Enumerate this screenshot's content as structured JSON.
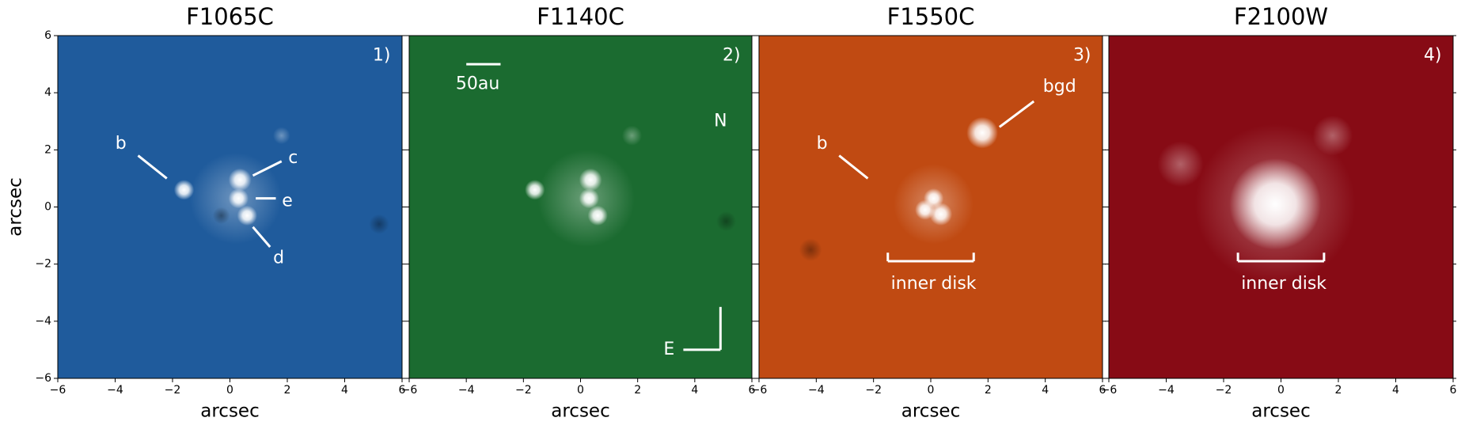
{
  "chart_data": [
    {
      "type": "image",
      "title": "F1065C",
      "panel_label": "1)",
      "xlabel": "arcsec",
      "ylabel": "arcsec",
      "color": "#1f5b9c",
      "xlim": [
        -6,
        6
      ],
      "ylim": [
        -6,
        6
      ],
      "xticks": [
        {
          "value": -6,
          "label": "−6"
        },
        {
          "value": -4,
          "label": "−4"
        },
        {
          "value": -2,
          "label": "−2"
        },
        0,
        2,
        4,
        6
      ],
      "yticks": [
        {
          "value": -6,
          "label": "−6"
        },
        {
          "value": -4,
          "label": "−4"
        },
        {
          "value": -2,
          "label": "−2"
        },
        0,
        2,
        4,
        6
      ],
      "annotations": [
        "b",
        "c",
        "e",
        "d"
      ]
    },
    {
      "type": "image",
      "title": "F1140C",
      "panel_label": "2)",
      "xlabel": "arcsec",
      "color": "#1b6b30",
      "xlim": [
        -6,
        6
      ],
      "ylim": [
        -6,
        6
      ],
      "xticks": [
        {
          "value": -6,
          "label": "−6"
        },
        {
          "value": -4,
          "label": "−4"
        },
        {
          "value": -2,
          "label": "−2"
        },
        0,
        2,
        4,
        6
      ],
      "yticks": [
        -6,
        -4,
        -2,
        0,
        2,
        4,
        6
      ],
      "annotations": [
        "50au",
        "N",
        "E"
      ]
    },
    {
      "type": "image",
      "title": "F1550C",
      "panel_label": "3)",
      "xlabel": "arcsec",
      "color": "#c04a12",
      "xlim": [
        -6,
        6
      ],
      "ylim": [
        -6,
        6
      ],
      "xticks": [
        {
          "value": -6,
          "label": "−6"
        },
        {
          "value": -4,
          "label": "−4"
        },
        {
          "value": -2,
          "label": "−2"
        },
        0,
        2,
        4,
        6
      ],
      "yticks": [
        -6,
        -4,
        -2,
        0,
        2,
        4,
        6
      ],
      "annotations": [
        "b",
        "bgd",
        "inner disk"
      ]
    },
    {
      "type": "image",
      "title": "F2100W",
      "panel_label": "4)",
      "xlabel": "arcsec",
      "color": "#870b15",
      "xlim": [
        -6,
        6
      ],
      "ylim": [
        -6,
        6
      ],
      "xticks": [
        {
          "value": -6,
          "label": "−6"
        },
        {
          "value": -4,
          "label": "−4"
        },
        {
          "value": -2,
          "label": "−2"
        },
        0,
        2,
        4,
        6
      ],
      "yticks": [
        -6,
        -4,
        -2,
        0,
        2,
        4,
        6
      ],
      "annotations": [
        "inner disk"
      ]
    }
  ]
}
